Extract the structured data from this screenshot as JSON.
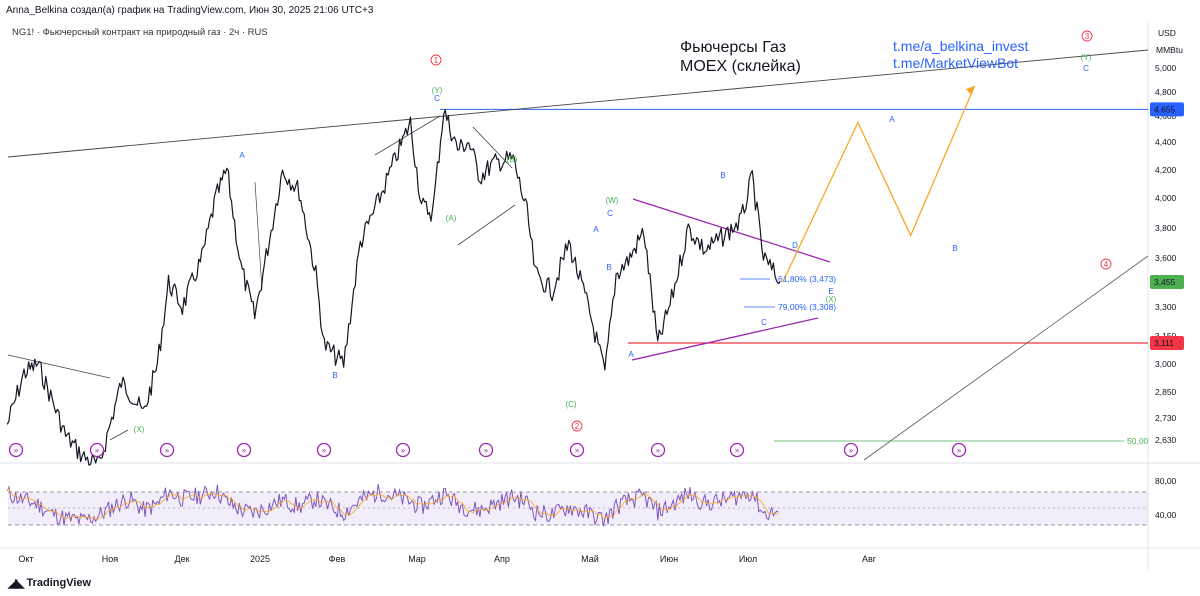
{
  "header": {
    "credit": "Anna_Belkina создал(а) график на TradingView.com, Июн 30, 2025 21:06 UTC+3",
    "symbol_line": "NG1! · Фьючерсный контракт на природный газ · 2ч · RUS"
  },
  "annotations": {
    "title_line1": "Фьючерсы Газ",
    "title_line2": "MOEX (склейка)",
    "promo_line1": "t.me/a_belkina_invest",
    "promo_line2": "t.me/MarketViewBot"
  },
  "price_axis": {
    "currency": "USD",
    "unit": "MMBtu",
    "ticks": [
      "5,000",
      "4,800",
      "4,600",
      "4,400",
      "4,200",
      "4,000",
      "3,800",
      "3,600",
      "3,300",
      "3,150",
      "3,000",
      "2,850",
      "2,730",
      "2,630"
    ],
    "price_badges": [
      {
        "label": "4,655",
        "value": 4.655,
        "color": "#2962ff"
      },
      {
        "label": "3,455",
        "value": 3.455,
        "color": "#4caf50"
      },
      {
        "label": "3,111",
        "value": 3.111,
        "color": "#f23645"
      }
    ]
  },
  "time_axis": {
    "ticks": [
      "Окт",
      "Ноя",
      "Дек",
      "2025",
      "Фев",
      "Мар",
      "Апр",
      "Май",
      "Июн",
      "Июл",
      "Авг"
    ]
  },
  "rsi_axis": {
    "ticks": [
      "80,00",
      "40,00"
    ]
  },
  "fib_levels": [
    {
      "label": "61,80% (3,473)",
      "value": 3.473
    },
    {
      "label": "79,00% (3,308)",
      "value": 3.308
    }
  ],
  "other_labels": {
    "level_50": "50,00"
  },
  "wave_labels": [
    {
      "text": "A",
      "color": "#2962ff"
    },
    {
      "text": "B",
      "color": "#2962ff"
    },
    {
      "text": "(X)",
      "color": "#4caf50"
    },
    {
      "text": "(Y)",
      "color": "#4caf50"
    },
    {
      "text": "C",
      "color": "#2962ff"
    },
    {
      "text": "(A)",
      "color": "#4caf50"
    },
    {
      "text": "(B)",
      "color": "#4caf50"
    },
    {
      "text": "(C)",
      "color": "#4caf50"
    },
    {
      "text": "(W)",
      "color": "#4caf50"
    },
    {
      "text": "A",
      "color": "#2962ff"
    },
    {
      "text": "C",
      "color": "#2962ff"
    },
    {
      "text": "B",
      "color": "#2962ff"
    },
    {
      "text": "A",
      "color": "#2962ff"
    },
    {
      "text": "B",
      "color": "#2962ff"
    },
    {
      "text": "D",
      "color": "#2962ff"
    },
    {
      "text": "E",
      "color": "#2962ff"
    },
    {
      "text": "(X)",
      "color": "#4caf50"
    },
    {
      "text": "C",
      "color": "#2962ff"
    },
    {
      "text": "A",
      "color": "#2962ff"
    },
    {
      "text": "B",
      "color": "#2962ff"
    },
    {
      "text": "(Y)",
      "color": "#4caf50"
    },
    {
      "text": "C",
      "color": "#2962ff"
    }
  ],
  "circled_markers": [
    {
      "text": "1",
      "color": "#f23645"
    },
    {
      "text": "2",
      "color": "#f23645"
    },
    {
      "text": "3",
      "color": "#f23645"
    },
    {
      "text": "4",
      "color": "#f23645"
    }
  ],
  "chart_data": {
    "type": "line",
    "symbol": "NG1!",
    "timeframe": "2ч",
    "ylim": [
      2.6,
      5.1
    ],
    "price_path": {
      "x": [
        "2024-09-25",
        "2024-10-01",
        "2024-10-06",
        "2024-10-10",
        "2024-10-16",
        "2024-10-22",
        "2024-10-28",
        "2024-11-05",
        "2024-11-08",
        "2024-11-13",
        "2024-11-18",
        "2024-11-22",
        "2024-11-27",
        "2024-12-04",
        "2024-12-09",
        "2024-12-13",
        "2024-12-18",
        "2024-12-23",
        "2025-01-02",
        "2025-01-08",
        "2025-01-14",
        "2025-01-17",
        "2025-01-24",
        "2025-01-30",
        "2025-02-06",
        "2025-02-12",
        "2025-02-17",
        "2025-02-21",
        "2025-02-25",
        "2025-03-01",
        "2025-03-06",
        "2025-03-10",
        "2025-03-14",
        "2025-03-19",
        "2025-03-26",
        "2025-03-31",
        "2025-04-03",
        "2025-04-09",
        "2025-04-15",
        "2025-04-22",
        "2025-04-28",
        "2025-05-02",
        "2025-05-07",
        "2025-05-12",
        "2025-05-17",
        "2025-05-22",
        "2025-05-28",
        "2025-06-03",
        "2025-06-10",
        "2025-06-16",
        "2025-06-20",
        "2025-06-24",
        "2025-06-30"
      ],
      "y": [
        2.7,
        2.95,
        3.0,
        2.85,
        2.65,
        2.55,
        2.5,
        2.9,
        2.85,
        2.75,
        3.0,
        3.45,
        3.3,
        3.6,
        4.0,
        4.2,
        3.55,
        3.25,
        4.2,
        4.05,
        3.5,
        3.1,
        3.0,
        3.7,
        4.0,
        4.3,
        4.55,
        3.95,
        3.9,
        4.65,
        4.35,
        4.4,
        4.15,
        4.25,
        4.28,
        3.9,
        3.5,
        3.4,
        3.7,
        3.3,
        2.95,
        3.5,
        3.6,
        3.78,
        3.1,
        3.35,
        3.8,
        3.65,
        3.75,
        3.85,
        4.15,
        3.6,
        3.455
      ]
    },
    "projection": {
      "points": [
        [
          "2025-07-01",
          3.455
        ],
        [
          "2025-07-28",
          4.55
        ],
        [
          "2025-08-16",
          3.75
        ],
        [
          "2025-09-08",
          4.85
        ]
      ],
      "labels": [
        "A",
        "B",
        "C"
      ]
    },
    "horizontal_levels": [
      4.655,
      3.111
    ],
    "trendlines": [
      "upper resistance from 2024-09 to 2025-09",
      "lower support rising from 2025-08",
      "triangle upper",
      "triangle lower"
    ],
    "rsi": {
      "ylim": [
        20,
        95
      ],
      "levels": [
        70,
        50,
        30
      ],
      "ticks": [
        80,
        40
      ],
      "values": [
        68,
        60,
        55,
        45,
        38,
        35,
        42,
        58,
        62,
        48,
        55,
        70,
        62,
        66,
        72,
        58,
        48,
        45,
        60,
        52,
        62,
        55,
        45,
        60,
        70,
        64,
        58,
        52,
        60,
        68,
        56,
        50,
        48,
        55,
        64,
        58,
        46,
        42,
        52,
        44,
        36,
        52,
        60,
        64,
        46,
        54,
        68,
        56,
        60,
        66,
        70,
        44,
        46
      ]
    }
  }
}
